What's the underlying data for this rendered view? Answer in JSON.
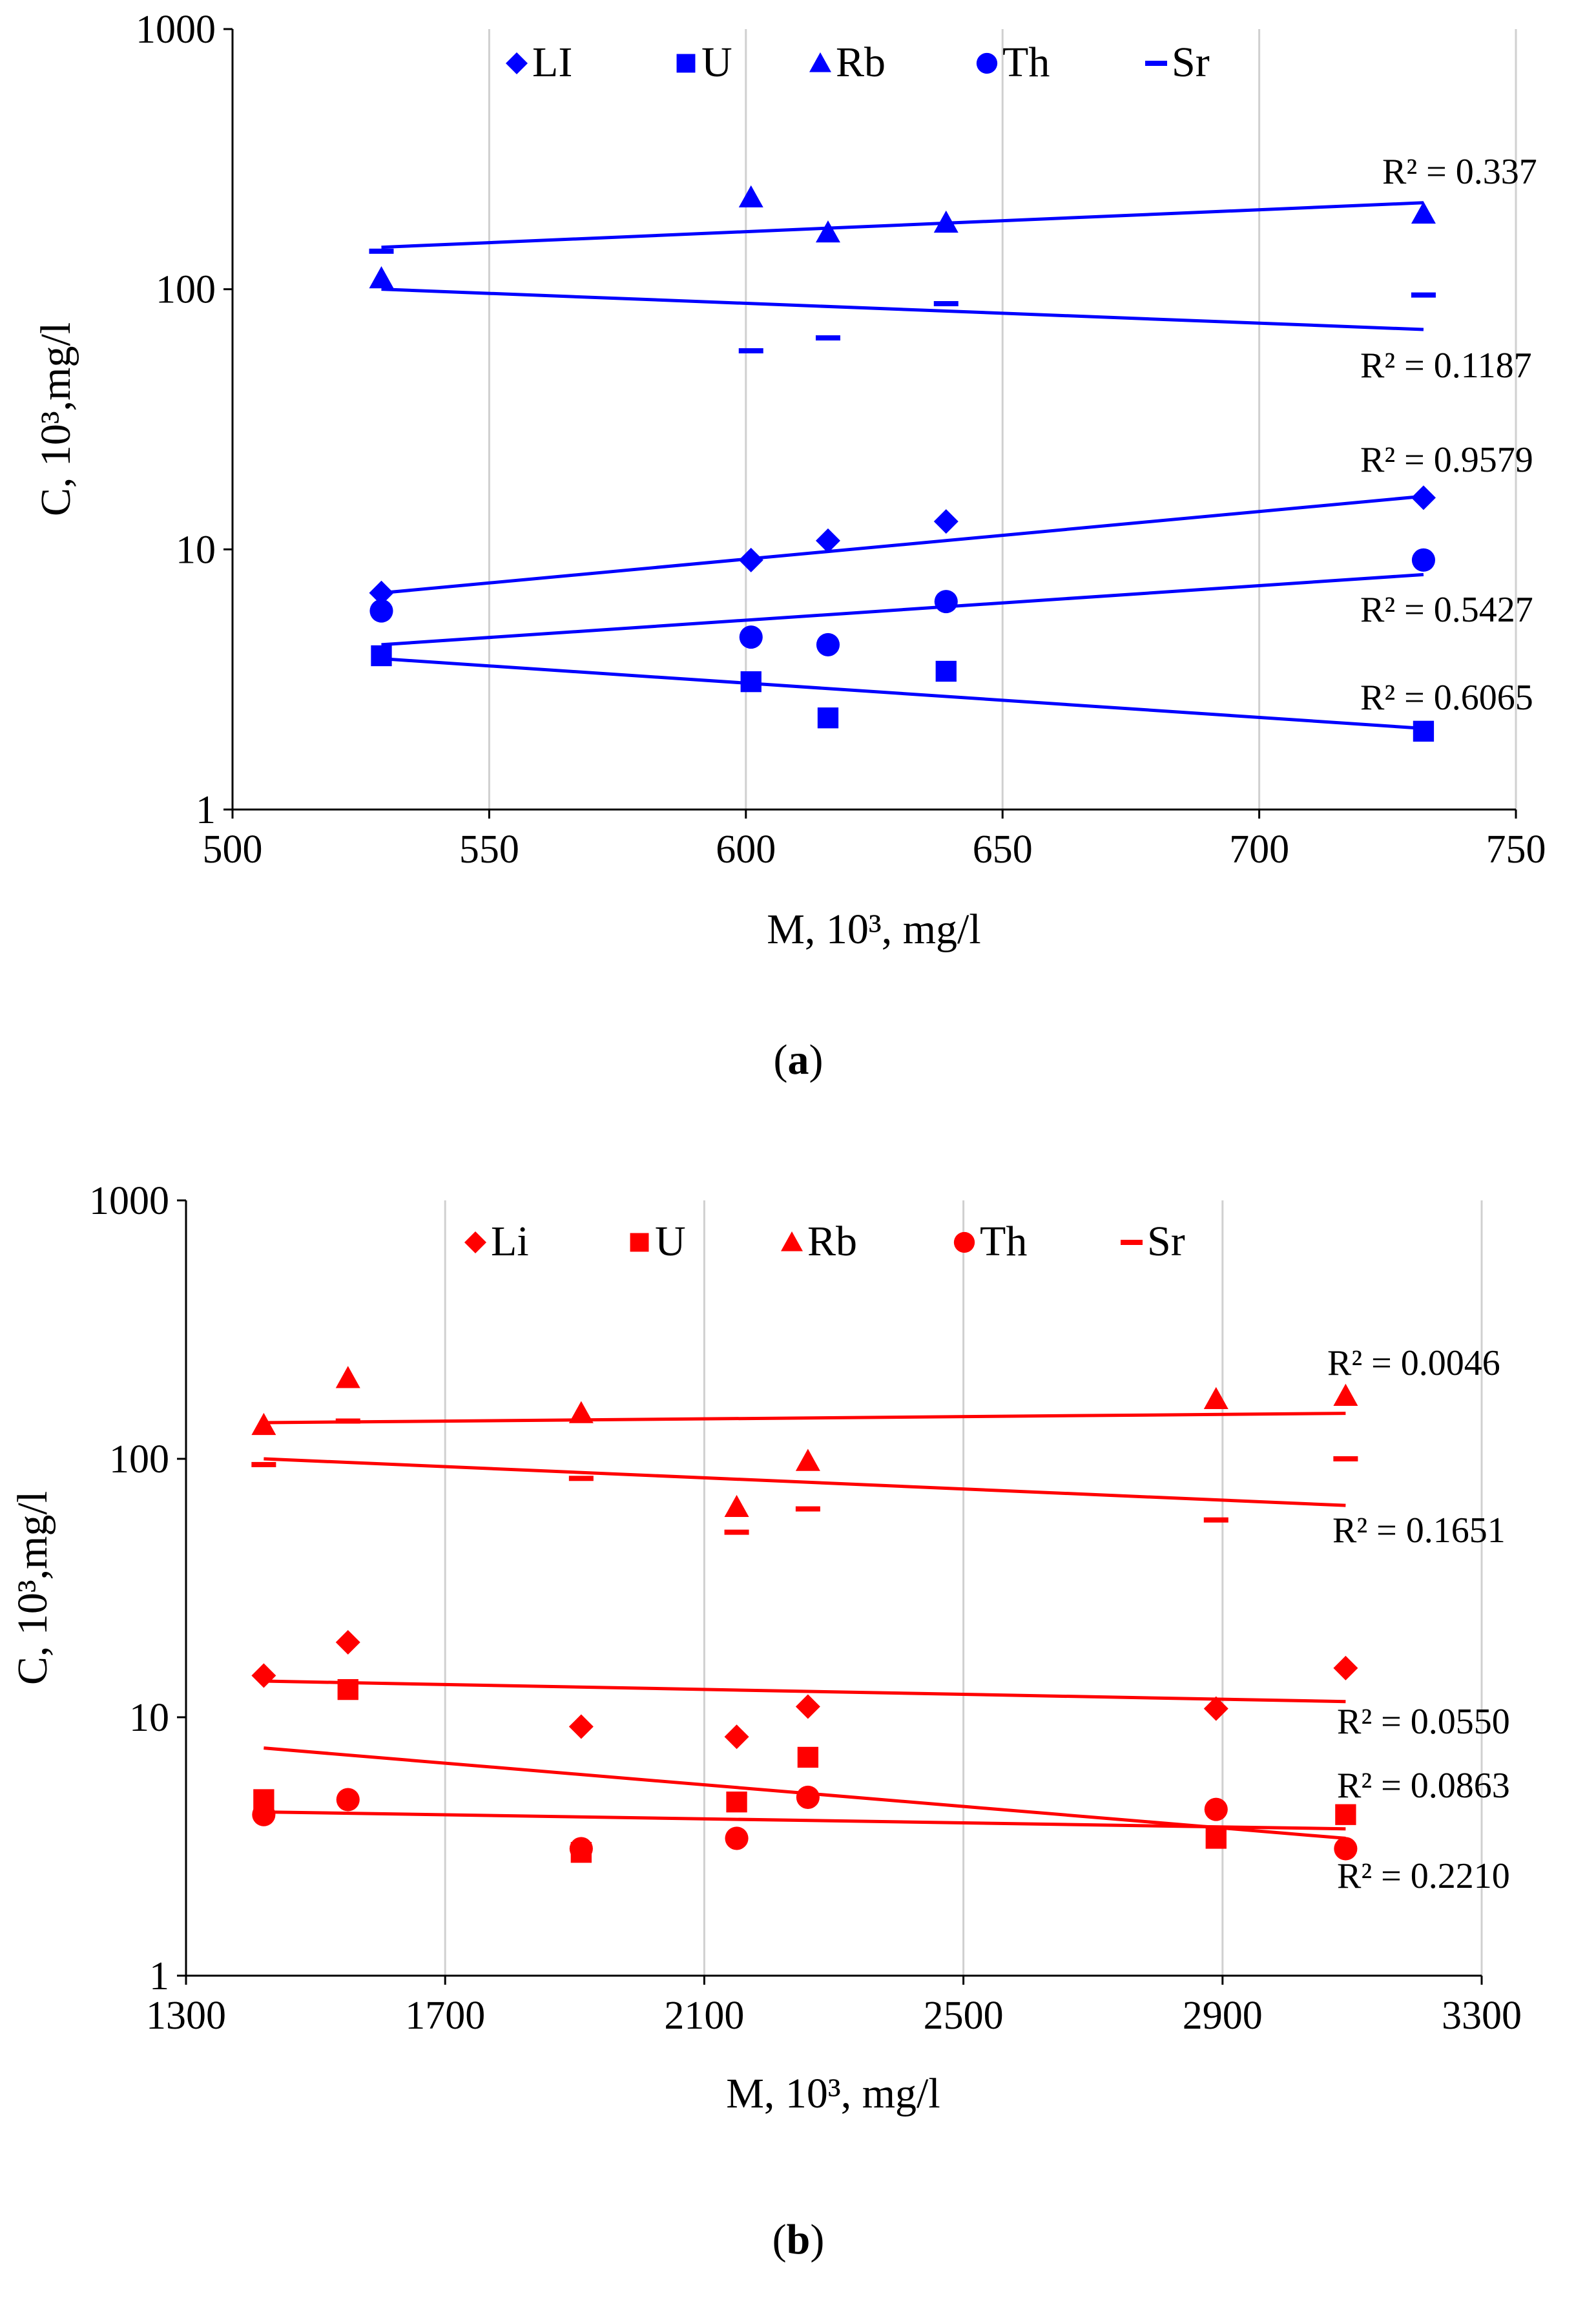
{
  "chart_data": [
    {
      "type": "scatter",
      "panel_label": "a",
      "color": "#0000ff",
      "xlabel": "M, 10³, mg/l",
      "ylabel": "C, 10³,mg/l",
      "xlim": [
        500,
        750
      ],
      "ylim": [
        1,
        1000
      ],
      "yscale": "log",
      "grid": "vertical",
      "legend_position": "top",
      "x_ticks": [
        500,
        550,
        600,
        650,
        700,
        750
      ],
      "y_ticks": [
        1,
        10,
        100,
        1000
      ],
      "series": [
        {
          "name": "LI",
          "marker": "diamond",
          "x": [
            529,
            601,
            616,
            639,
            732
          ],
          "y": [
            6.8,
            9.1,
            10.8,
            12.8,
            15.8
          ],
          "trend": {
            "from": [
              529,
              6.8
            ],
            "to": [
              732,
              16.0
            ]
          },
          "r2": "R² = 0.9579"
        },
        {
          "name": "U",
          "marker": "square",
          "x": [
            529,
            601,
            616,
            639,
            732
          ],
          "y": [
            3.9,
            3.1,
            2.25,
            3.4,
            2.0
          ],
          "trend": {
            "from": [
              529,
              3.8
            ],
            "to": [
              732,
              2.05
            ]
          },
          "r2": "R² = 0.6065"
        },
        {
          "name": "Rb",
          "marker": "triangle",
          "x": [
            529,
            601,
            616,
            639,
            732
          ],
          "y": [
            110,
            225,
            165,
            180,
            195
          ],
          "trend": {
            "from": [
              529,
              145
            ],
            "to": [
              732,
              215
            ]
          },
          "r2": "R² = 0.337"
        },
        {
          "name": "Th",
          "marker": "circle",
          "x": [
            529,
            601,
            616,
            639,
            732
          ],
          "y": [
            5.8,
            4.6,
            4.3,
            6.3,
            9.1
          ],
          "trend": {
            "from": [
              529,
              4.3
            ],
            "to": [
              732,
              8.0
            ]
          },
          "r2": "R² = 0.5427"
        },
        {
          "name": "Sr",
          "marker": "dash",
          "x": [
            529,
            601,
            616,
            639,
            732
          ],
          "y": [
            140,
            58,
            65,
            88,
            95
          ],
          "trend": {
            "from": [
              529,
              100
            ],
            "to": [
              732,
              70
            ]
          },
          "r2": "R² = 0.1187"
        }
      ]
    },
    {
      "type": "scatter",
      "panel_label": "b",
      "color": "#ff0000",
      "xlabel": "M, 10³, mg/l",
      "ylabel": "C, 10³,mg/l",
      "xlim": [
        1300,
        3300
      ],
      "ylim": [
        1,
        1000
      ],
      "yscale": "log",
      "grid": "vertical",
      "legend_position": "top",
      "x_ticks": [
        1300,
        1700,
        2100,
        2500,
        2900,
        3300
      ],
      "y_ticks": [
        1,
        10,
        100,
        1000
      ],
      "series": [
        {
          "name": "Li",
          "marker": "diamond",
          "x": [
            1420,
            1550,
            1910,
            2150,
            2260,
            2890,
            3090
          ],
          "y": [
            14.5,
            19.5,
            9.2,
            8.4,
            11.0,
            10.8,
            15.5
          ],
          "trend": {
            "from": [
              1420,
              13.8
            ],
            "to": [
              3090,
              11.5
            ]
          },
          "r2": "R² = 0.0550"
        },
        {
          "name": "U",
          "marker": "square",
          "x": [
            1420,
            1550,
            1910,
            2150,
            2260,
            2890,
            3090
          ],
          "y": [
            4.8,
            12.8,
            3.0,
            4.7,
            7.0,
            3.4,
            4.2
          ],
          "trend": {
            "from": [
              1420,
              7.6
            ],
            "to": [
              3090,
              3.4
            ]
          },
          "r2": "R² = 0.2210"
        },
        {
          "name": "Rb",
          "marker": "triangle",
          "x": [
            1420,
            1550,
            1910,
            2150,
            2260,
            2890,
            3090
          ],
          "y": [
            135,
            205,
            150,
            65,
            98,
            170,
            175
          ],
          "trend": {
            "from": [
              1420,
              138
            ],
            "to": [
              3090,
              150
            ]
          },
          "r2": "R² = 0.0046"
        },
        {
          "name": "Th",
          "marker": "circle",
          "x": [
            1420,
            1550,
            1910,
            2150,
            2260,
            2890,
            3090
          ],
          "y": [
            4.2,
            4.8,
            3.1,
            3.4,
            4.9,
            4.4,
            3.1
          ],
          "trend": {
            "from": [
              1420,
              4.3
            ],
            "to": [
              3090,
              3.7
            ]
          },
          "r2": "R² = 0.0863"
        },
        {
          "name": "Sr",
          "marker": "dash",
          "x": [
            1420,
            1550,
            1910,
            2150,
            2260,
            2890,
            3090
          ],
          "y": [
            95,
            140,
            84,
            52,
            64,
            58,
            100
          ],
          "trend": {
            "from": [
              1420,
              100
            ],
            "to": [
              3090,
              66
            ]
          },
          "r2": "R² = 0.1651"
        }
      ]
    }
  ]
}
